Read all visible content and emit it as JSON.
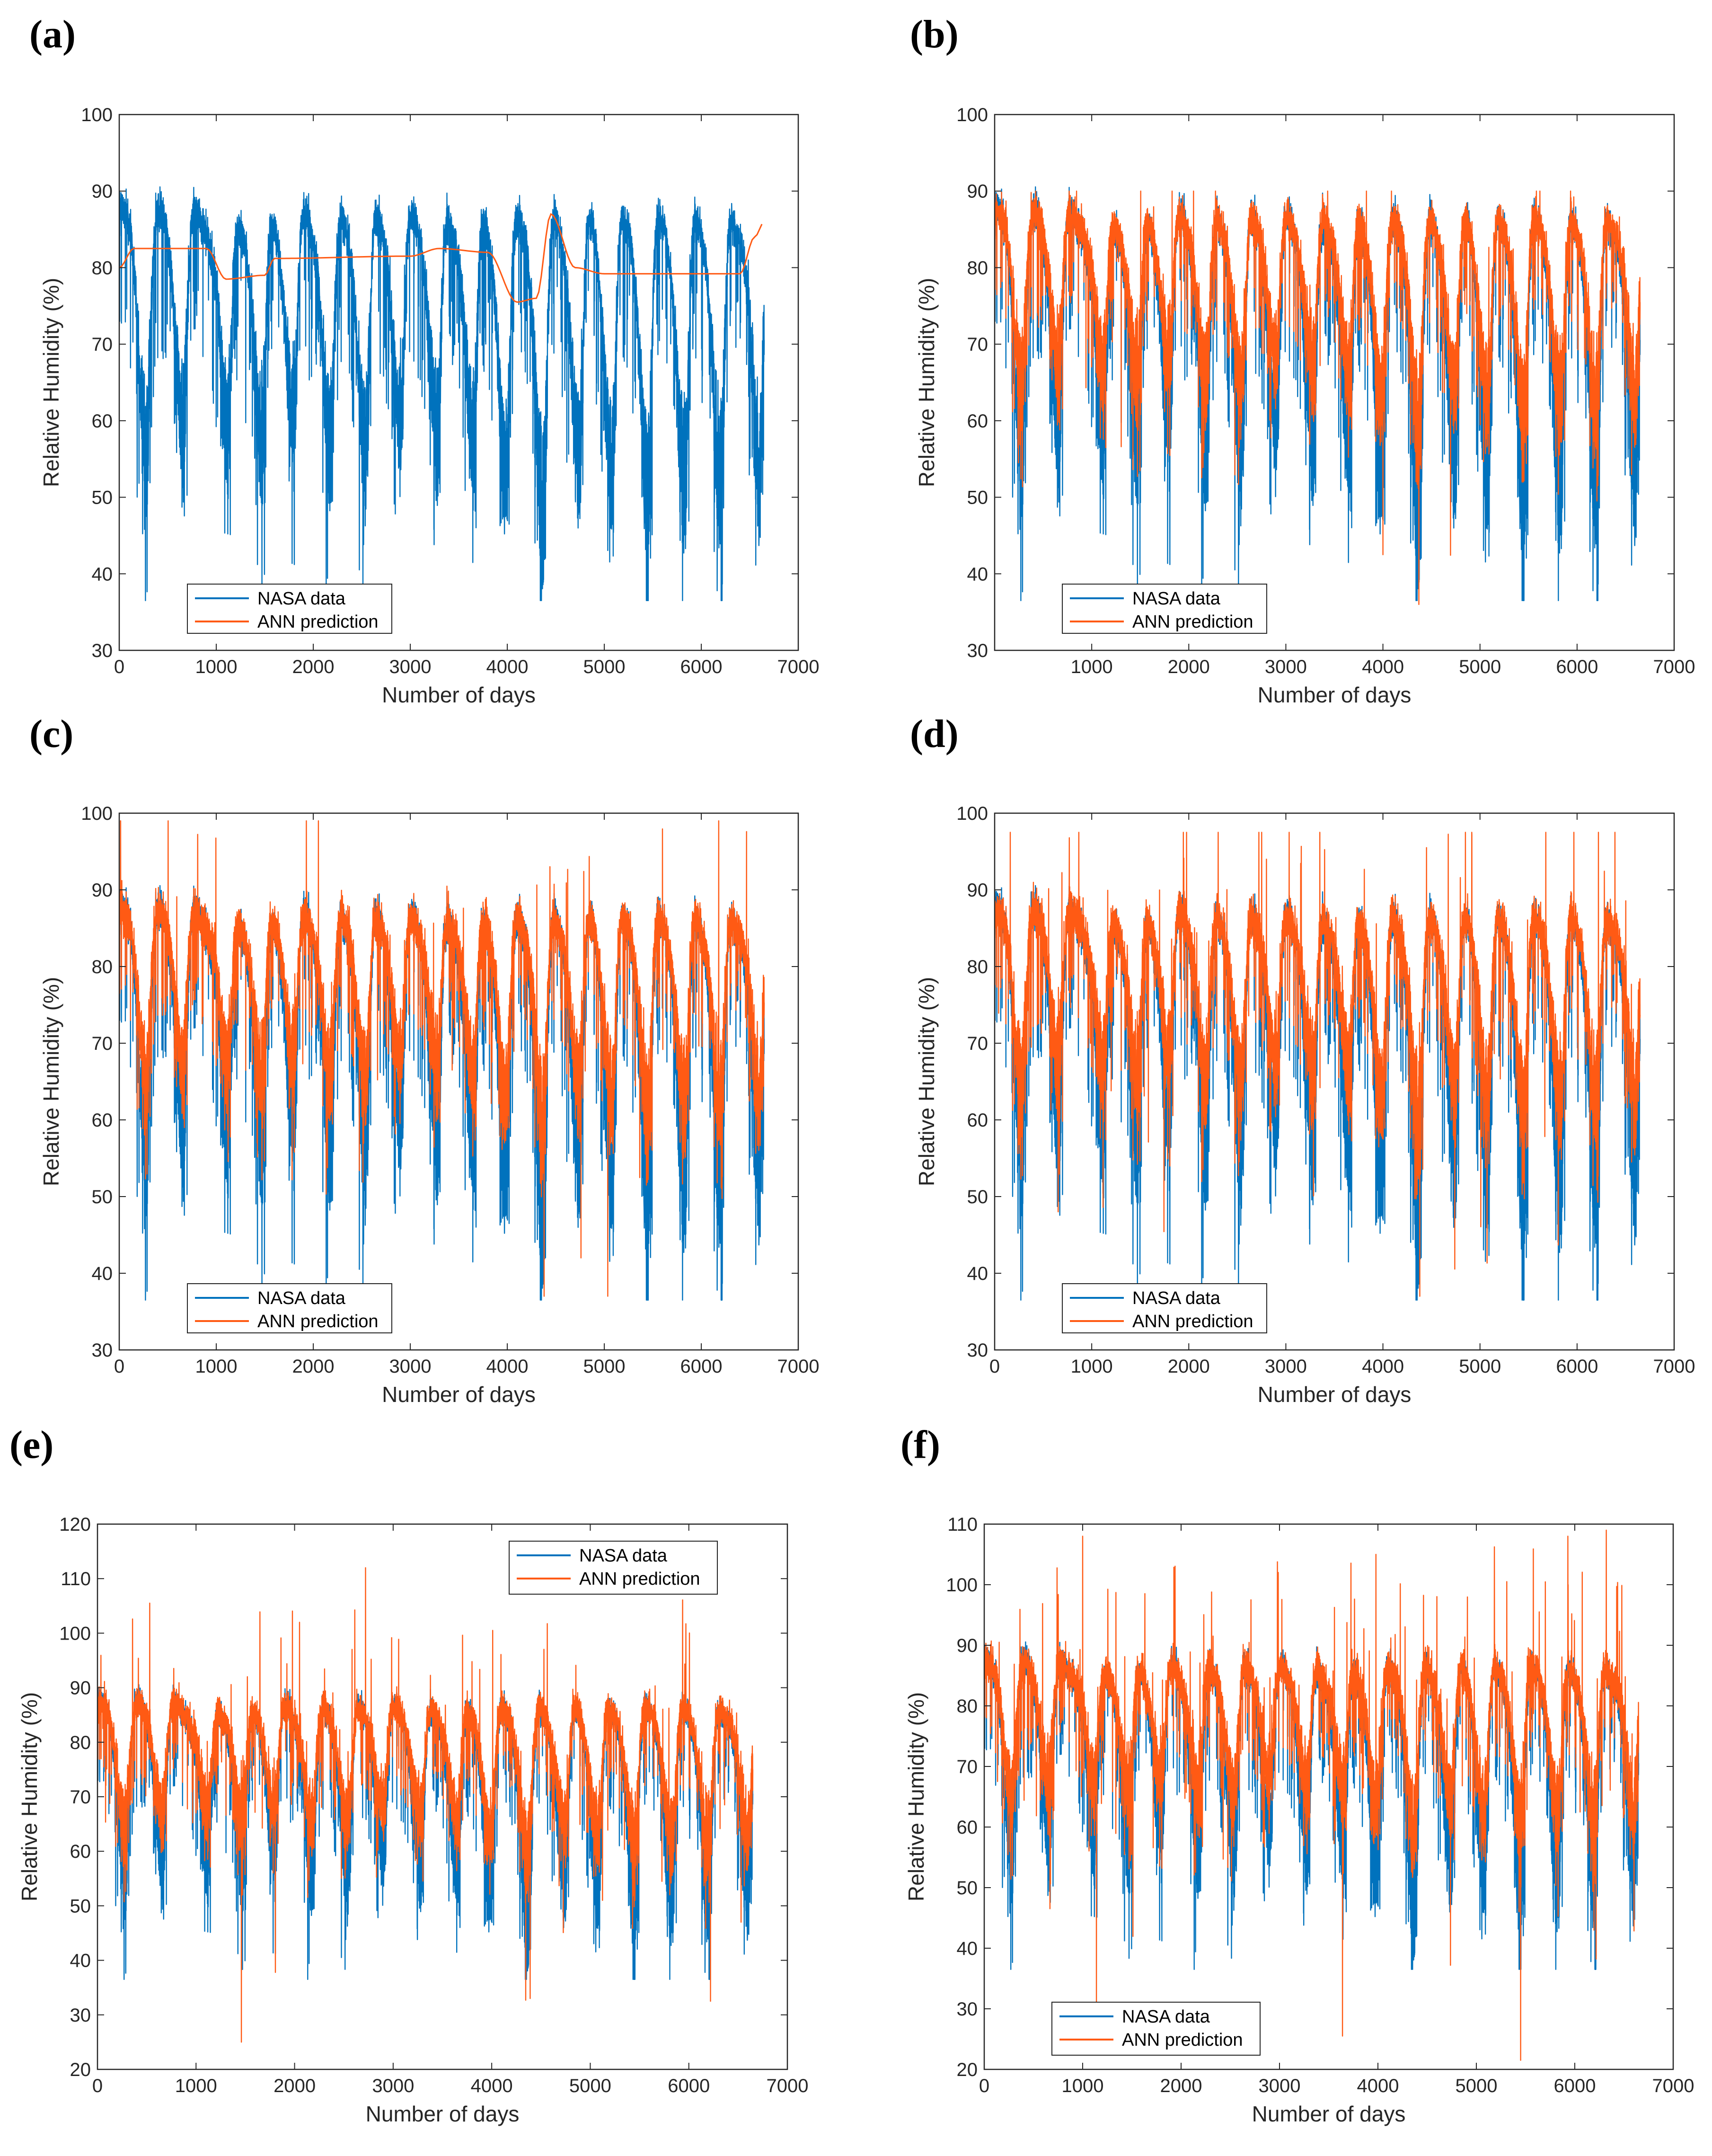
{
  "figure": {
    "colors": {
      "nasa": "#0072BD",
      "ann": "#FF5A14",
      "axis": "#262626"
    }
  },
  "chart_data": [
    {
      "panel": "(a)",
      "type": "line",
      "xlabel": "Number of days",
      "ylabel": "Relative Humidity (%)",
      "xlim": [
        0,
        7000
      ],
      "ylim": [
        30,
        100
      ],
      "xticks": [
        0,
        1000,
        2000,
        3000,
        4000,
        5000,
        6000,
        7000
      ],
      "yticks": [
        30,
        40,
        50,
        60,
        70,
        80,
        90,
        100
      ],
      "legend_position": "bottom-left",
      "series": [
        {
          "name": "NASA data",
          "n_days": 6650,
          "range": [
            36.5,
            94
          ],
          "typical": 86
        },
        {
          "name": "ANN prediction",
          "n_days": 6650,
          "range": [
            75,
            87
          ],
          "smooth_levels": [
            [
              0,
              80
            ],
            [
              150,
              82.5
            ],
            [
              900,
              82.5
            ],
            [
              1100,
              78.5
            ],
            [
              1500,
              79
            ],
            [
              1600,
              81.2
            ],
            [
              3000,
              81.5
            ],
            [
              3300,
              82.5
            ],
            [
              3800,
              82
            ],
            [
              4100,
              75.5
            ],
            [
              4300,
              76
            ],
            [
              4450,
              87
            ],
            [
              4700,
              80
            ],
            [
              5000,
              79.2
            ],
            [
              6400,
              79.2
            ],
            [
              6550,
              84
            ],
            [
              6650,
              86
            ]
          ]
        }
      ]
    },
    {
      "panel": "(b)",
      "type": "line",
      "xlabel": "Number of days",
      "ylabel": "Relative Humidity (%)",
      "xlim": [
        0,
        7000
      ],
      "ylim": [
        30,
        100
      ],
      "xticks": [
        1000,
        2000,
        3000,
        4000,
        5000,
        6000,
        7000
      ],
      "yticks": [
        30,
        40,
        50,
        60,
        70,
        80,
        90,
        100
      ],
      "legend_position": "bottom-left",
      "series": [
        {
          "name": "NASA data",
          "n_days": 6650,
          "range": [
            36.5,
            94
          ],
          "typical": 86
        },
        {
          "name": "ANN prediction",
          "n_days": 6650,
          "range": [
            36,
            90
          ],
          "typical": 86
        }
      ]
    },
    {
      "panel": "(c)",
      "type": "line",
      "xlabel": "Number of days",
      "ylabel": "Relative Humidity (%)",
      "xlim": [
        0,
        7000
      ],
      "ylim": [
        30,
        100
      ],
      "xticks": [
        0,
        1000,
        2000,
        3000,
        4000,
        5000,
        6000,
        7000
      ],
      "yticks": [
        30,
        40,
        50,
        60,
        70,
        80,
        90,
        100
      ],
      "legend_position": "bottom-left",
      "series": [
        {
          "name": "NASA data",
          "n_days": 6650,
          "range": [
            36.5,
            94
          ],
          "typical": 86
        },
        {
          "name": "ANN prediction",
          "n_days": 6650,
          "range": [
            37,
            99
          ],
          "typical": 86
        }
      ]
    },
    {
      "panel": "(d)",
      "type": "line",
      "xlabel": "Number of days",
      "ylabel": "Relative Humidity (%)",
      "xlim": [
        0,
        7000
      ],
      "ylim": [
        30,
        100
      ],
      "xticks": [
        0,
        1000,
        2000,
        3000,
        4000,
        5000,
        6000,
        7000
      ],
      "yticks": [
        30,
        40,
        50,
        60,
        70,
        80,
        90,
        100
      ],
      "legend_position": "bottom-left",
      "series": [
        {
          "name": "NASA data",
          "n_days": 6650,
          "range": [
            36.5,
            94
          ],
          "typical": 86
        },
        {
          "name": "ANN prediction",
          "n_days": 6650,
          "range": [
            37,
            97.5
          ],
          "typical": 86
        }
      ]
    },
    {
      "panel": "(e)",
      "type": "line",
      "xlabel": "Number of days",
      "ylabel": "Relative Humidity (%)",
      "xlim": [
        0,
        7000
      ],
      "ylim": [
        20,
        120
      ],
      "xticks": [
        0,
        1000,
        2000,
        3000,
        4000,
        5000,
        6000,
        7000
      ],
      "yticks": [
        20,
        30,
        40,
        50,
        60,
        70,
        80,
        90,
        100,
        110,
        120
      ],
      "legend_position": "top-right",
      "series": [
        {
          "name": "NASA data",
          "n_days": 6650,
          "range": [
            36.5,
            94
          ],
          "typical": 86
        },
        {
          "name": "ANN prediction",
          "n_days": 6650,
          "range": [
            25,
            112
          ],
          "typical": 86
        }
      ]
    },
    {
      "panel": "(f)",
      "type": "line",
      "xlabel": "Number of days",
      "ylabel": "Relative Humidity (%)",
      "xlim": [
        0,
        7000
      ],
      "ylim": [
        20,
        110
      ],
      "xticks": [
        0,
        1000,
        2000,
        3000,
        4000,
        5000,
        6000,
        7000
      ],
      "yticks": [
        20,
        30,
        40,
        50,
        60,
        70,
        80,
        90,
        100,
        110
      ],
      "legend_position": "bottom-left",
      "series": [
        {
          "name": "NASA data",
          "n_days": 6650,
          "range": [
            36.5,
            94
          ],
          "typical": 86
        },
        {
          "name": "ANN prediction",
          "n_days": 6650,
          "range": [
            21.5,
            109
          ],
          "typical": 86
        }
      ]
    }
  ]
}
